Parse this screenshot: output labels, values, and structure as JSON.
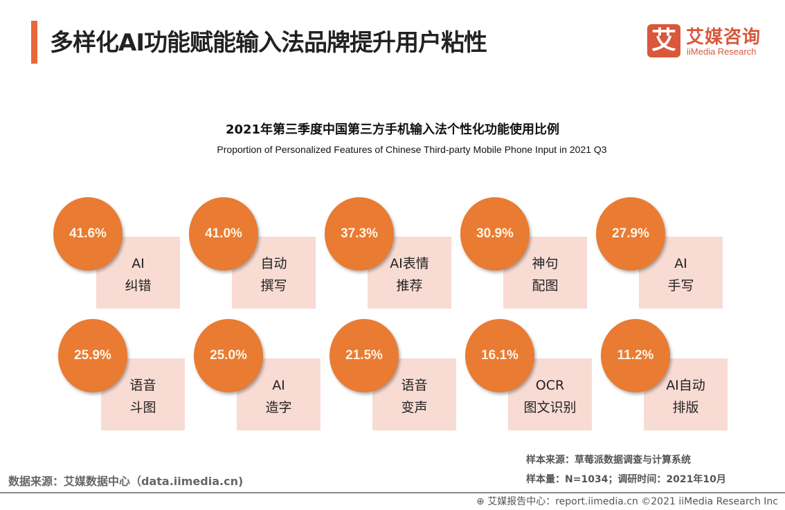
{
  "header": {
    "title": "多样化AI功能赋能输入法品牌提升用户粘性",
    "accent_color": "#e8673a"
  },
  "logo": {
    "mark": "艾",
    "name_cn": "艾媒咨询",
    "name_en": "iiMedia Research",
    "color": "#d9573a"
  },
  "chart": {
    "title": "2021年第三季度中国第三方手机输入法个性化功能使用比例",
    "subtitle": "Proportion of Personalized Features of Chinese Third-party Mobile Phone Input in 2021 Q3",
    "items": [
      {
        "value": "41.6%",
        "line1": "AI",
        "line2": "纠错"
      },
      {
        "value": "41.0%",
        "line1": "自动",
        "line2": "撰写"
      },
      {
        "value": "37.3%",
        "line1": "AI表情",
        "line2": "推荐"
      },
      {
        "value": "30.9%",
        "line1": "神句",
        "line2": "配图"
      },
      {
        "value": "27.9%",
        "line1": "AI",
        "line2": "手写"
      },
      {
        "value": "25.9%",
        "line1": "语音",
        "line2": "斗图"
      },
      {
        "value": "25.0%",
        "line1": "AI",
        "line2": "造字"
      },
      {
        "value": "21.5%",
        "line1": "语音",
        "line2": "变声"
      },
      {
        "value": "16.1%",
        "line1": "OCR",
        "line2": "图文识别"
      },
      {
        "value": "11.2%",
        "line1": "AI自动",
        "line2": "排版"
      }
    ]
  },
  "footer": {
    "data_source": "数据来源：艾媒数据中心（data.iimedia.cn)",
    "sample_source": "样本来源：草莓派数据调查与计算系统",
    "sample_size": "样本量：N=1034；调研时间：2021年10月",
    "report": "艾媒报告中心：report.iimedia.cn  ©2021  iiMedia Research  Inc"
  }
}
